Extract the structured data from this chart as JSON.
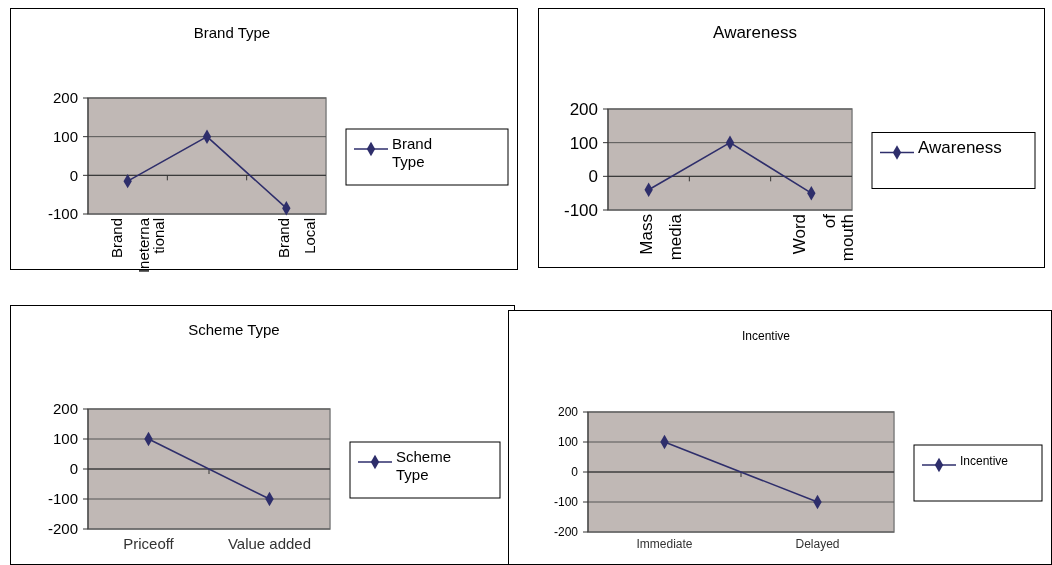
{
  "chart_data": [
    {
      "type": "line",
      "title": "Brand Type",
      "categories": [
        "Brand Ineternational",
        null,
        "Brand Local"
      ],
      "series": [
        {
          "name": "Brand Type",
          "color": "#2e2e6b",
          "values": [
            -15,
            100,
            -85
          ]
        }
      ],
      "ylim": [
        -100,
        200
      ],
      "yticks": [
        -100,
        0,
        100,
        200
      ],
      "grid": "y",
      "legend": "right",
      "marker": "diamond"
    },
    {
      "type": "line",
      "title": "Awareness",
      "categories": [
        "Mass media",
        null,
        "Word of mouth"
      ],
      "series": [
        {
          "name": "Awareness",
          "color": "#2e2e6b",
          "values": [
            -40,
            100,
            -50
          ]
        }
      ],
      "ylim": [
        -100,
        200
      ],
      "yticks": [
        -100,
        0,
        100,
        200
      ],
      "grid": "y",
      "legend": "right",
      "marker": "diamond"
    },
    {
      "type": "line",
      "title": "Scheme Type",
      "categories": [
        "Priceoff",
        "Value added"
      ],
      "series": [
        {
          "name": "Scheme Type",
          "color": "#2e2e6b",
          "values": [
            100,
            -100
          ]
        }
      ],
      "ylim": [
        -200,
        200
      ],
      "yticks": [
        -200,
        -100,
        0,
        100,
        200
      ],
      "grid": "y",
      "legend": "right",
      "marker": "diamond"
    },
    {
      "type": "line",
      "title": "Incentive",
      "categories": [
        "Immediate",
        "Delayed"
      ],
      "series": [
        {
          "name": "Incentive",
          "color": "#2e2e6b",
          "values": [
            100,
            -100
          ]
        }
      ],
      "ylim": [
        -200,
        200
      ],
      "yticks": [
        -200,
        -100,
        0,
        100,
        200
      ],
      "grid": "y",
      "legend": "right",
      "marker": "diamond"
    }
  ]
}
